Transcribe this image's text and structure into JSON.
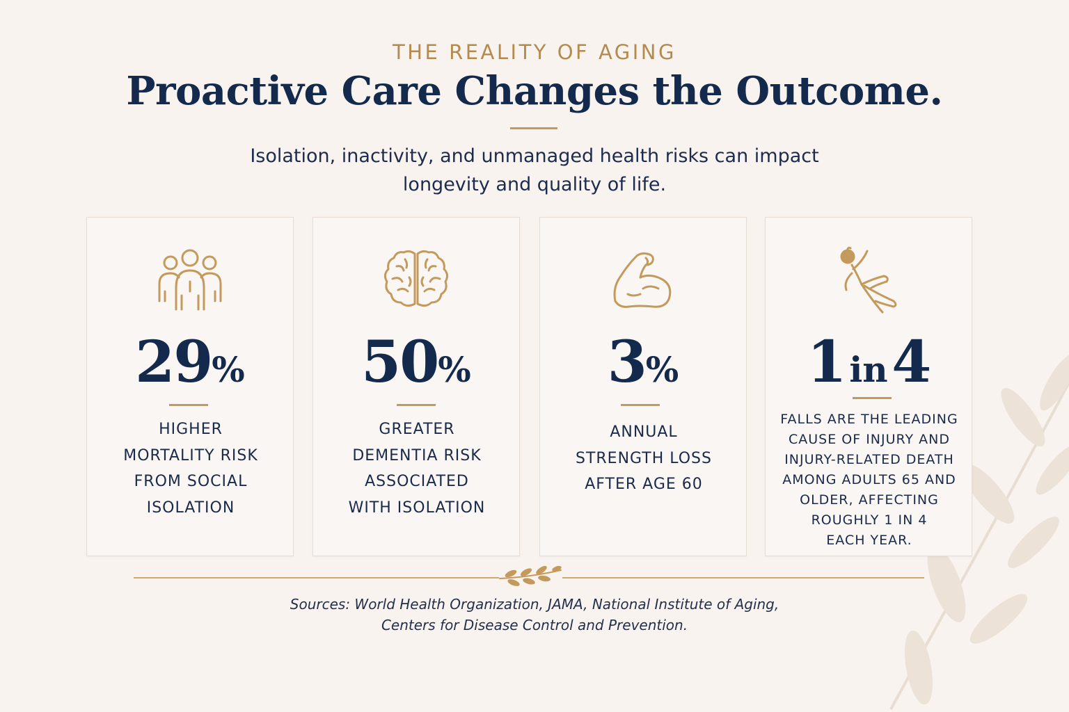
{
  "header": {
    "eyebrow": "THE REALITY OF AGING",
    "title": "Proactive Care Changes the Outcome.",
    "subtitle_line1": "Isolation, inactivity, and unmanaged health risks can impact",
    "subtitle_line2": "longevity and quality of life."
  },
  "cards": [
    {
      "icon": "people-group-icon",
      "stat_number": "29",
      "stat_suffix": "%",
      "desc_lines": [
        "HIGHER",
        "MORTALITY RISK",
        "FROM SOCIAL",
        "ISOLATION"
      ]
    },
    {
      "icon": "brain-icon",
      "stat_number": "50",
      "stat_suffix": "%",
      "desc_lines": [
        "GREATER",
        "DEMENTIA RISK",
        "ASSOCIATED",
        "WITH ISOLATION"
      ]
    },
    {
      "icon": "flexed-bicep-icon",
      "stat_number": "3",
      "stat_suffix": "%",
      "desc_lines": [
        "ANNUAL",
        "STRENGTH LOSS",
        "AFTER AGE 60"
      ]
    },
    {
      "icon": "falling-person-icon",
      "stat_a": "1",
      "stat_mid": "in",
      "stat_b": "4",
      "desc_lines": [
        "FALLS ARE THE LEADING",
        "CAUSE OF INJURY AND",
        "INJURY-RELATED DEATH",
        "AMONG ADULTS 65 AND",
        "OLDER, AFFECTING",
        "ROUGHLY 1 IN 4",
        "EACH YEAR."
      ]
    }
  ],
  "footer": {
    "sources_line1": "Sources: World Health Organization, JAMA, National Institute of Aging,",
    "sources_line2": "Centers for Disease Control and Prevention."
  },
  "colors": {
    "background": "#f8f3ef",
    "navy": "#142a4c",
    "gold": "#b48b4f",
    "card": "#faf6f3"
  }
}
